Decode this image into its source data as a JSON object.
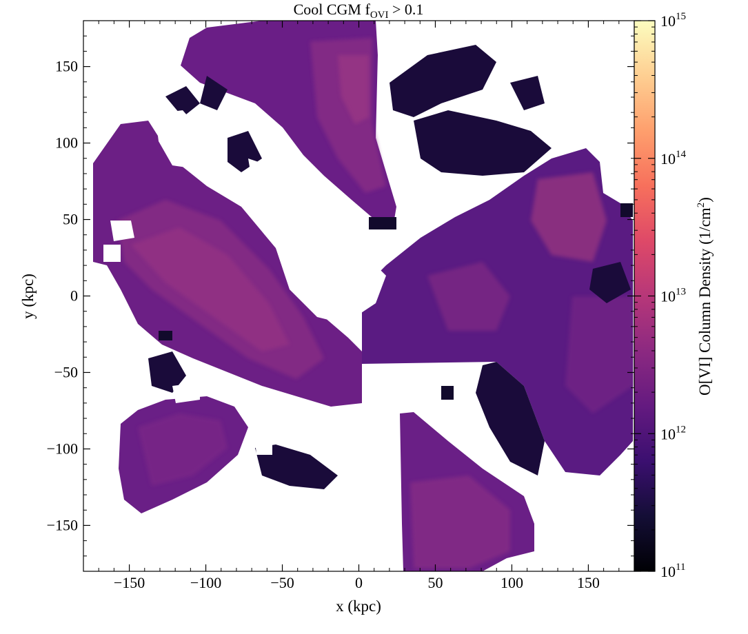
{
  "chart_data": {
    "type": "heatmap",
    "title": {
      "main": "Cool CGM f",
      "sub": "OVI",
      "rest": " > 0.1"
    },
    "xlabel": "x  (kpc)",
    "ylabel": "y  (kpc)",
    "xlim": [
      -180,
      180
    ],
    "ylim": [
      -180,
      180
    ],
    "xticks": [
      -150,
      -100,
      -50,
      0,
      50,
      100,
      150
    ],
    "yticks": [
      -150,
      -100,
      -50,
      0,
      50,
      100,
      150
    ],
    "xticklabels": [
      "−150",
      "−100",
      "−50",
      "0",
      "50",
      "100",
      "150"
    ],
    "yticklabels": [
      "−150",
      "−100",
      "−50",
      "0",
      "50",
      "100",
      "150"
    ],
    "colorbar": {
      "label": {
        "main": "O[VI] Column Density (1/cm",
        "sup": "2",
        "rest": ")"
      },
      "scale": "log",
      "range": [
        100000000000.0,
        1000000000000000.0
      ],
      "colormap": "magma",
      "tick_bases": [
        "10",
        "10",
        "10",
        "10",
        "10"
      ],
      "tick_exponents": [
        "11",
        "12",
        "13",
        "14",
        "15"
      ],
      "tick_log_values": [
        11,
        12,
        13,
        14,
        15
      ]
    },
    "regions": [
      {
        "name": "upper-plume",
        "log_n": 12.6
      },
      {
        "name": "left-filament",
        "log_n": 12.65
      },
      {
        "name": "right-lobe",
        "log_n": 12.5
      },
      {
        "name": "bottom-plume",
        "log_n": 12.45
      },
      {
        "name": "lower-left-cloud",
        "log_n": 12.4
      },
      {
        "name": "dark-fragments",
        "log_n": 11.3
      }
    ]
  }
}
